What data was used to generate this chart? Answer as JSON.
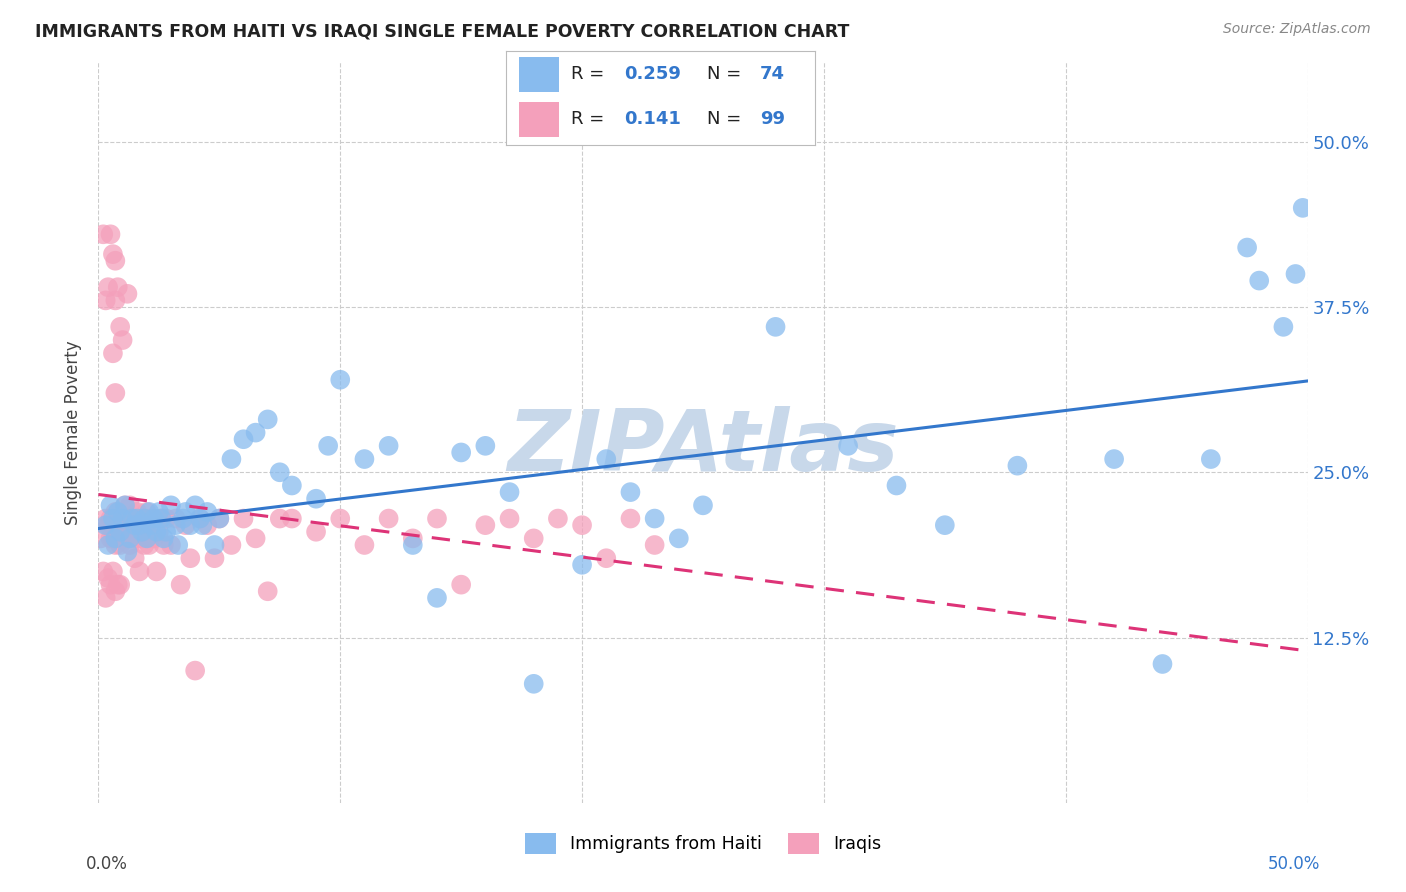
{
  "title": "IMMIGRANTS FROM HAITI VS IRAQI SINGLE FEMALE POVERTY CORRELATION CHART",
  "source": "Source: ZipAtlas.com",
  "ylabel": "Single Female Poverty",
  "legend_label1": "Immigrants from Haiti",
  "legend_label2": "Iraqis",
  "R_haiti": 0.259,
  "N_haiti": 74,
  "R_iraqis": 0.141,
  "N_iraqis": 99,
  "color_haiti": "#88bbee",
  "color_iraqis": "#f4a0bb",
  "color_haiti_line": "#3377cc",
  "color_iraqis_line": "#dd3377",
  "watermark": "ZIPAtlas",
  "watermark_color": "#c8d8ea",
  "background_color": "#ffffff",
  "xlim": [
    0.0,
    0.5
  ],
  "ylim": [
    0.0,
    0.55
  ],
  "yticks": [
    0.125,
    0.25,
    0.375,
    0.5
  ],
  "ytick_labels": [
    "12.5%",
    "25.0%",
    "37.5%",
    "50.0%"
  ],
  "haiti_x": [
    0.003,
    0.004,
    0.005,
    0.006,
    0.007,
    0.008,
    0.009,
    0.01,
    0.011,
    0.012,
    0.013,
    0.014,
    0.015,
    0.016,
    0.017,
    0.018,
    0.019,
    0.02,
    0.021,
    0.022,
    0.023,
    0.024,
    0.025,
    0.026,
    0.027,
    0.028,
    0.03,
    0.032,
    0.033,
    0.035,
    0.036,
    0.038,
    0.04,
    0.042,
    0.043,
    0.045,
    0.048,
    0.05,
    0.055,
    0.06,
    0.065,
    0.07,
    0.075,
    0.08,
    0.09,
    0.095,
    0.1,
    0.11,
    0.12,
    0.13,
    0.14,
    0.15,
    0.16,
    0.17,
    0.18,
    0.2,
    0.21,
    0.22,
    0.23,
    0.24,
    0.25,
    0.28,
    0.31,
    0.33,
    0.35,
    0.38,
    0.42,
    0.44,
    0.46,
    0.475,
    0.48,
    0.49,
    0.495,
    0.498
  ],
  "haiti_y": [
    0.21,
    0.195,
    0.225,
    0.215,
    0.2,
    0.22,
    0.205,
    0.215,
    0.225,
    0.19,
    0.2,
    0.215,
    0.21,
    0.215,
    0.21,
    0.205,
    0.215,
    0.2,
    0.22,
    0.21,
    0.215,
    0.205,
    0.22,
    0.215,
    0.2,
    0.205,
    0.225,
    0.21,
    0.195,
    0.215,
    0.22,
    0.21,
    0.225,
    0.215,
    0.21,
    0.22,
    0.195,
    0.215,
    0.26,
    0.275,
    0.28,
    0.29,
    0.25,
    0.24,
    0.23,
    0.27,
    0.32,
    0.26,
    0.27,
    0.195,
    0.155,
    0.265,
    0.27,
    0.235,
    0.09,
    0.18,
    0.26,
    0.235,
    0.215,
    0.2,
    0.225,
    0.36,
    0.27,
    0.24,
    0.21,
    0.255,
    0.26,
    0.105,
    0.26,
    0.42,
    0.395,
    0.36,
    0.4,
    0.45
  ],
  "iraqis_x": [
    0.001,
    0.002,
    0.002,
    0.003,
    0.003,
    0.003,
    0.004,
    0.004,
    0.004,
    0.005,
    0.005,
    0.005,
    0.005,
    0.006,
    0.006,
    0.006,
    0.006,
    0.006,
    0.007,
    0.007,
    0.007,
    0.007,
    0.007,
    0.007,
    0.008,
    0.008,
    0.008,
    0.008,
    0.009,
    0.009,
    0.009,
    0.009,
    0.01,
    0.01,
    0.01,
    0.01,
    0.011,
    0.011,
    0.011,
    0.012,
    0.012,
    0.012,
    0.013,
    0.013,
    0.013,
    0.014,
    0.014,
    0.015,
    0.015,
    0.015,
    0.016,
    0.016,
    0.017,
    0.017,
    0.018,
    0.018,
    0.019,
    0.019,
    0.02,
    0.02,
    0.021,
    0.022,
    0.023,
    0.024,
    0.025,
    0.026,
    0.027,
    0.028,
    0.03,
    0.032,
    0.034,
    0.036,
    0.038,
    0.04,
    0.042,
    0.045,
    0.048,
    0.05,
    0.055,
    0.06,
    0.065,
    0.07,
    0.075,
    0.08,
    0.09,
    0.1,
    0.11,
    0.12,
    0.13,
    0.14,
    0.15,
    0.16,
    0.17,
    0.18,
    0.19,
    0.2,
    0.21,
    0.22,
    0.23
  ],
  "iraqis_y": [
    0.2,
    0.43,
    0.175,
    0.215,
    0.38,
    0.155,
    0.21,
    0.39,
    0.17,
    0.43,
    0.215,
    0.2,
    0.165,
    0.415,
    0.2,
    0.34,
    0.175,
    0.21,
    0.41,
    0.195,
    0.31,
    0.22,
    0.16,
    0.38,
    0.2,
    0.39,
    0.165,
    0.215,
    0.36,
    0.215,
    0.195,
    0.165,
    0.21,
    0.215,
    0.2,
    0.35,
    0.225,
    0.21,
    0.2,
    0.215,
    0.385,
    0.205,
    0.215,
    0.225,
    0.195,
    0.215,
    0.205,
    0.215,
    0.185,
    0.205,
    0.2,
    0.22,
    0.205,
    0.175,
    0.215,
    0.2,
    0.195,
    0.215,
    0.22,
    0.205,
    0.195,
    0.215,
    0.2,
    0.175,
    0.205,
    0.215,
    0.195,
    0.215,
    0.195,
    0.215,
    0.165,
    0.21,
    0.185,
    0.1,
    0.215,
    0.21,
    0.185,
    0.215,
    0.195,
    0.215,
    0.2,
    0.16,
    0.215,
    0.215,
    0.205,
    0.215,
    0.195,
    0.215,
    0.2,
    0.215,
    0.165,
    0.21,
    0.215,
    0.2,
    0.215,
    0.21,
    0.185,
    0.215,
    0.195
  ]
}
